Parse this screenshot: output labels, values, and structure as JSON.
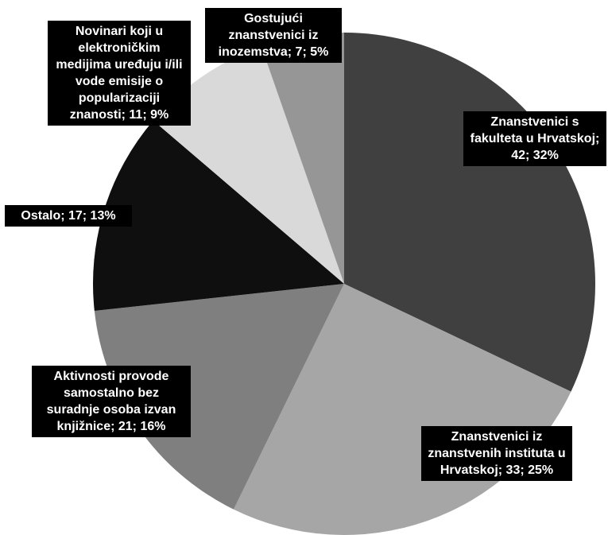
{
  "chart_data": {
    "type": "pie",
    "categories": [
      "Znanstvenici s fakulteta u Hrvatskoj; 42; 32%",
      "Znanstvenici iz znanstvenih instituta u Hrvatskoj; 33; 25%",
      "Aktivnosti provode samostalno bez suradnje osoba izvan knjižnice; 21; 16%",
      "Ostalo; 17; 13%",
      "Novinari koji u elektroničkim medijima uređuju i/ili vode emisije o popularizaciji znanosti; 11; 9%",
      "Gostujući znanstvenici iz inozemstva; 7; 5%"
    ],
    "values": [
      42,
      33,
      21,
      17,
      11,
      7
    ],
    "colors": [
      "#404040",
      "#a6a6a6",
      "#7f7f7f",
      "#0f0f0f",
      "#d9d9d9",
      "#969696"
    ]
  }
}
